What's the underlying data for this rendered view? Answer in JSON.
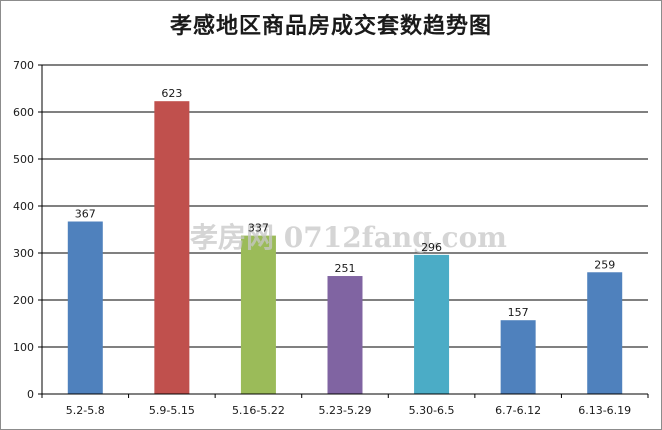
{
  "chart_data": {
    "type": "bar",
    "title": "孝感地区商品房成交套数趋势图",
    "xlabel": "",
    "ylabel": "",
    "ylim": [
      0,
      700
    ],
    "yticks": [
      0,
      100,
      200,
      300,
      400,
      500,
      600,
      700
    ],
    "grid": true,
    "legend": "none",
    "categories": [
      "5.2-5.8",
      "5.9-5.15",
      "5.16-5.22",
      "5.23-5.29",
      "5.30-6.5",
      "6.7-6.12",
      "6.13-6.19"
    ],
    "values": [
      367,
      623,
      337,
      251,
      296,
      157,
      259
    ],
    "colors": [
      "#4f81bd",
      "#c0504d",
      "#9bbb59",
      "#8064a2",
      "#4bacc6",
      "#4f81bd",
      "#4f81bd"
    ]
  },
  "watermark": {
    "text": "孝房网 0712fang.com"
  }
}
